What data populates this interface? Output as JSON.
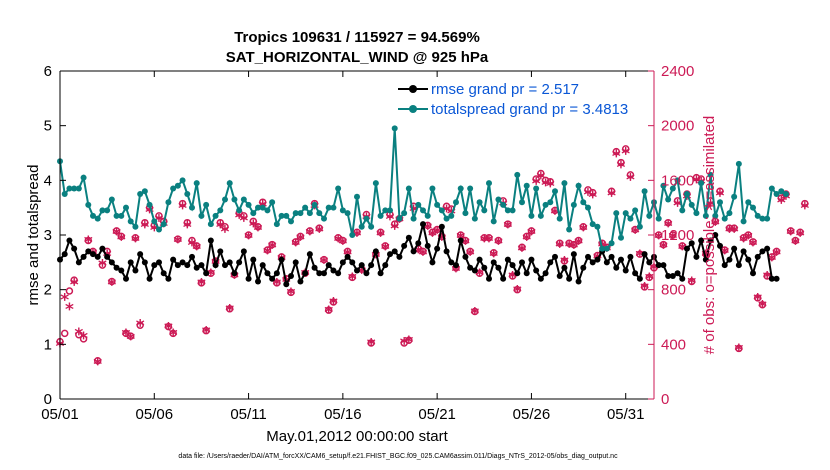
{
  "chart_data": {
    "type": "line",
    "title_line1": "Tropics 109631 / 115927 = 94.569%",
    "title_line2": "SAT_HORIZONTAL_WIND @ 925 hPa",
    "xlabel": "May.01,2012 00:00:00 start",
    "ylabel_left": "rmse and totalspread",
    "ylabel_right": "# of obs: o=possible; ∗=assimilated",
    "xlim": [
      0,
      31.5
    ],
    "ylim_left": [
      0,
      6
    ],
    "ylim_right": [
      0,
      2400
    ],
    "x_ticks": [
      0,
      5,
      10,
      15,
      20,
      25,
      30
    ],
    "x_tick_labels": [
      "05/01",
      "05/06",
      "05/11",
      "05/16",
      "05/21",
      "05/26",
      "05/31"
    ],
    "y_ticks_left": [
      0,
      1,
      2,
      3,
      4,
      5,
      6
    ],
    "y_tick_labels_left": [
      "0",
      "1",
      "2",
      "3",
      "4",
      "5",
      "6"
    ],
    "y_ticks_right": [
      0,
      400,
      800,
      1200,
      1600,
      2000,
      2400
    ],
    "y_tick_labels_right": [
      "0",
      "400",
      "800",
      "1200",
      "1600",
      "2000",
      "2400"
    ],
    "x_step": 0.25,
    "series": [
      {
        "name": "rmse",
        "legend": "rmse grand pr = 2.517",
        "color": "#000000",
        "axis": "left",
        "values": [
          2.55,
          2.65,
          2.9,
          2.75,
          2.5,
          2.6,
          2.7,
          2.65,
          2.6,
          2.75,
          2.6,
          2.5,
          2.4,
          2.35,
          2.2,
          2.5,
          2.35,
          2.65,
          2.5,
          2.2,
          2.45,
          2.5,
          2.3,
          2.2,
          2.55,
          2.45,
          2.5,
          2.45,
          2.6,
          2.4,
          2.45,
          2.3,
          2.9,
          2.45,
          2.7,
          2.45,
          2.5,
          2.3,
          2.5,
          2.7,
          2.2,
          2.55,
          2.15,
          2.45,
          2.3,
          2.2,
          2.3,
          2.55,
          2.1,
          2.25,
          2.5,
          2.15,
          2.3,
          2.65,
          2.4,
          2.3,
          2.3,
          2.45,
          2.35,
          2.3,
          2.5,
          2.6,
          2.5,
          2.35,
          2.45,
          2.3,
          2.45,
          2.7,
          2.3,
          2.45,
          2.65,
          2.7,
          2.6,
          2.8,
          2.95,
          2.7,
          2.85,
          3.2,
          2.8,
          2.5,
          2.75,
          3.15,
          2.7,
          2.5,
          2.45,
          2.9,
          2.6,
          2.4,
          2.35,
          2.55,
          2.4,
          2.2,
          2.5,
          2.4,
          2.2,
          2.55,
          2.45,
          2.3,
          2.5,
          2.3,
          2.55,
          2.35,
          2.2,
          2.3,
          2.5,
          2.6,
          2.25,
          2.4,
          2.2,
          2.65,
          2.15,
          2.4,
          2.6,
          2.5,
          2.55,
          2.7,
          2.5,
          2.6,
          2.4,
          2.55,
          2.35,
          2.6,
          2.3,
          2.2,
          2.65,
          2.5,
          2.6,
          2.45,
          2.45,
          2.25,
          2.25,
          2.3,
          2.2,
          2.75,
          2.85,
          2.6,
          2.9,
          2.55,
          2.9,
          3.0,
          2.8,
          2.45,
          2.55,
          2.75,
          2.45,
          2.7,
          2.55,
          2.3,
          2.6,
          2.7,
          2.75,
          2.2,
          2.2
        ]
      },
      {
        "name": "totalspread",
        "legend": "totalspread grand pr = 3.4813",
        "color": "#0a8080",
        "axis": "left",
        "values": [
          4.35,
          3.75,
          3.85,
          3.85,
          3.85,
          4.05,
          3.55,
          3.35,
          3.3,
          3.45,
          3.45,
          3.65,
          3.35,
          3.35,
          3.5,
          3.25,
          3.15,
          3.75,
          3.8,
          3.55,
          3.25,
          3.1,
          3.2,
          3.6,
          3.85,
          3.9,
          4.0,
          3.75,
          3.5,
          3.95,
          3.35,
          3.55,
          3.2,
          3.35,
          3.45,
          3.65,
          3.95,
          3.65,
          3.45,
          3.65,
          3.55,
          3.4,
          3.5,
          3.5,
          3.45,
          3.6,
          3.2,
          3.35,
          3.35,
          3.25,
          3.4,
          3.4,
          3.5,
          3.4,
          3.55,
          3.4,
          3.3,
          3.5,
          3.5,
          3.85,
          3.45,
          3.4,
          3.0,
          3.7,
          3.15,
          3.3,
          3.15,
          3.95,
          3.35,
          3.45,
          3.45,
          4.95,
          3.3,
          3.4,
          3.85,
          3.3,
          3.55,
          3.45,
          3.35,
          3.85,
          3.55,
          3.45,
          3.3,
          3.35,
          3.6,
          3.85,
          3.4,
          3.85,
          3.3,
          3.6,
          3.45,
          3.95,
          3.25,
          3.65,
          3.55,
          3.45,
          3.45,
          4.1,
          3.6,
          3.9,
          3.35,
          3.85,
          3.35,
          3.55,
          3.6,
          3.8,
          3.3,
          3.95,
          3.1,
          3.55,
          3.9,
          3.6,
          3.5,
          3.2,
          3.15,
          2.75,
          2.75,
          2.85,
          3.4,
          2.95,
          3.4,
          3.3,
          3.45,
          3.15,
          3.8,
          3.35,
          3.6,
          3.3,
          3.9,
          3.65,
          3.85,
          4.0,
          3.45,
          3.75,
          3.55,
          3.4,
          3.95,
          3.35,
          4.1,
          3.35,
          3.6,
          3.3,
          3.4,
          3.7,
          4.3,
          3.25,
          3.6,
          3.5,
          3.35,
          3.3,
          3.3,
          3.85,
          3.75,
          3.8,
          3.75
        ]
      },
      {
        "name": "obs_possible",
        "color": "#cc1a55",
        "axis": "right",
        "marker": "o",
        "values": [
          420,
          480,
          790,
          870,
          470,
          440,
          1160,
          1080,
          280,
          980,
          1080,
          860,
          1230,
          1190,
          480,
          460,
          1180,
          540,
          1290,
          1400,
          1270,
          1340,
          1300,
          530,
          480,
          1170,
          1430,
          1290,
          1160,
          1120,
          850,
          500,
          920,
          1010,
          1290,
          1260,
          660,
          910,
          1360,
          1340,
          1200,
          1300,
          1260,
          1440,
          1090,
          1130,
          850,
          1040,
          880,
          780,
          1150,
          1190,
          920,
          1230,
          1430,
          1250,
          1020,
          650,
          710,
          1180,
          1160,
          1080,
          890,
          1220,
          950,
          1350,
          410,
          1060,
          1220,
          1120,
          1350,
          1280,
          1320,
          410,
          430,
          1410,
          1100,
          1080,
          1270,
          1220,
          1240,
          1190,
          1410,
          1390,
          960,
          1200,
          1160,
          1080,
          640,
          920,
          1180,
          1180,
          1070,
          1160,
          1450,
          1280,
          900,
          800,
          1110,
          1190,
          1230,
          1610,
          1650,
          1600,
          1590,
          1380,
          1140,
          1010,
          1140,
          1130,
          1160,
          1260,
          1530,
          1510,
          1050,
          1140,
          1110,
          1520,
          1810,
          1730,
          1830,
          1640,
          1240,
          1060,
          820,
          890,
          960,
          1200,
          1130,
          1290,
          1200,
          1450,
          1120,
          1500,
          860,
          1620,
          1610,
          1060,
          1450,
          1300,
          1520,
          1090,
          1250,
          1250,
          370,
          1180,
          1200,
          1150,
          740,
          690,
          900,
          1040,
          1080,
          1470,
          1500,
          1230,
          1160,
          1220,
          1430
        ]
      },
      {
        "name": "obs_assimilated",
        "color": "#cc1a55",
        "axis": "right",
        "marker": "*",
        "values": [
          380,
          720,
          650,
          830,
          470,
          440,
          1140,
          1050,
          250,
          970,
          1040,
          830,
          1200,
          1160,
          460,
          430,
          1150,
          530,
          1250,
          1360,
          1230,
          1300,
          1260,
          510,
          460,
          1140,
          1390,
          1250,
          1120,
          1090,
          830,
          480,
          900,
          980,
          1250,
          1220,
          640,
          880,
          1320,
          1300,
          1170,
          1260,
          1230,
          1400,
          1060,
          1100,
          830,
          1010,
          850,
          760,
          1120,
          1160,
          900,
          1200,
          1390,
          1220,
          990,
          630,
          690,
          1150,
          1130,
          1050,
          870,
          1190,
          920,
          1310,
          390,
          1030,
          1190,
          1090,
          1310,
          1240,
          1290,
          400,
          410,
          1370,
          1070,
          1050,
          1240,
          1190,
          1210,
          1160,
          1370,
          1350,
          930,
          1170,
          1130,
          1050,
          620,
          900,
          1150,
          1150,
          1040,
          1130,
          1410,
          1250,
          880,
          780,
          1080,
          1160,
          1200,
          1570,
          1610,
          1560,
          1550,
          1350,
          1110,
          990,
          1110,
          1100,
          1130,
          1230,
          1490,
          1470,
          1020,
          1110,
          1080,
          1480,
          1770,
          1690,
          1790,
          1600,
          1210,
          1040,
          800,
          870,
          940,
          1170,
          1100,
          1260,
          1170,
          1410,
          1090,
          1460,
          840,
          1580,
          1570,
          1040,
          1410,
          1270,
          1480,
          1060,
          1220,
          1220,
          350,
          1150,
          1170,
          1120,
          720,
          670,
          880,
          1010,
          1050,
          1430,
          1460,
          1200,
          1130,
          1190,
          1390
        ]
      }
    ],
    "footnote": "data file: /Users/raeder/DAI/ATM_forcXX/CAM6_setup/f.e21.FHIST_BGC.f09_025.CAM6assim.011/Diags_NTrS_2012-05/obs_diag_output.nc"
  },
  "colors": {
    "axis": "#000000",
    "right_axis": "#cc1a55",
    "legend_text": "#0a57d6"
  }
}
